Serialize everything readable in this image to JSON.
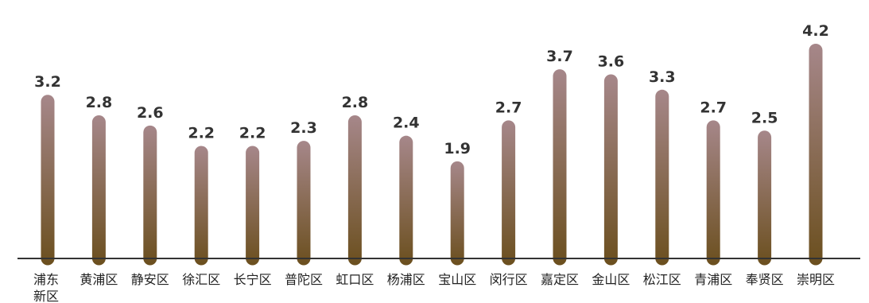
{
  "chart_data": {
    "type": "bar",
    "title": "",
    "xlabel": "",
    "ylabel": "",
    "categories": [
      "浦东新区",
      "黄浦区",
      "静安区",
      "徐汇区",
      "长宁区",
      "普陀区",
      "虹口区",
      "杨浦区",
      "宝山区",
      "闵行区",
      "嘉定区",
      "金山区",
      "松江区",
      "青浦区",
      "奉贤区",
      "崇明区"
    ],
    "values": [
      3.2,
      2.8,
      2.6,
      2.2,
      2.2,
      2.3,
      2.8,
      2.4,
      1.9,
      2.7,
      3.7,
      3.6,
      3.3,
      2.7,
      2.5,
      4.2
    ],
    "ylim": [
      0,
      5
    ],
    "grid": false,
    "legend": "none",
    "colors": {
      "bar_top": "#a6878a",
      "bar_bottom": "#6b4f1e",
      "axis": "#333333",
      "label": "#222222"
    }
  }
}
